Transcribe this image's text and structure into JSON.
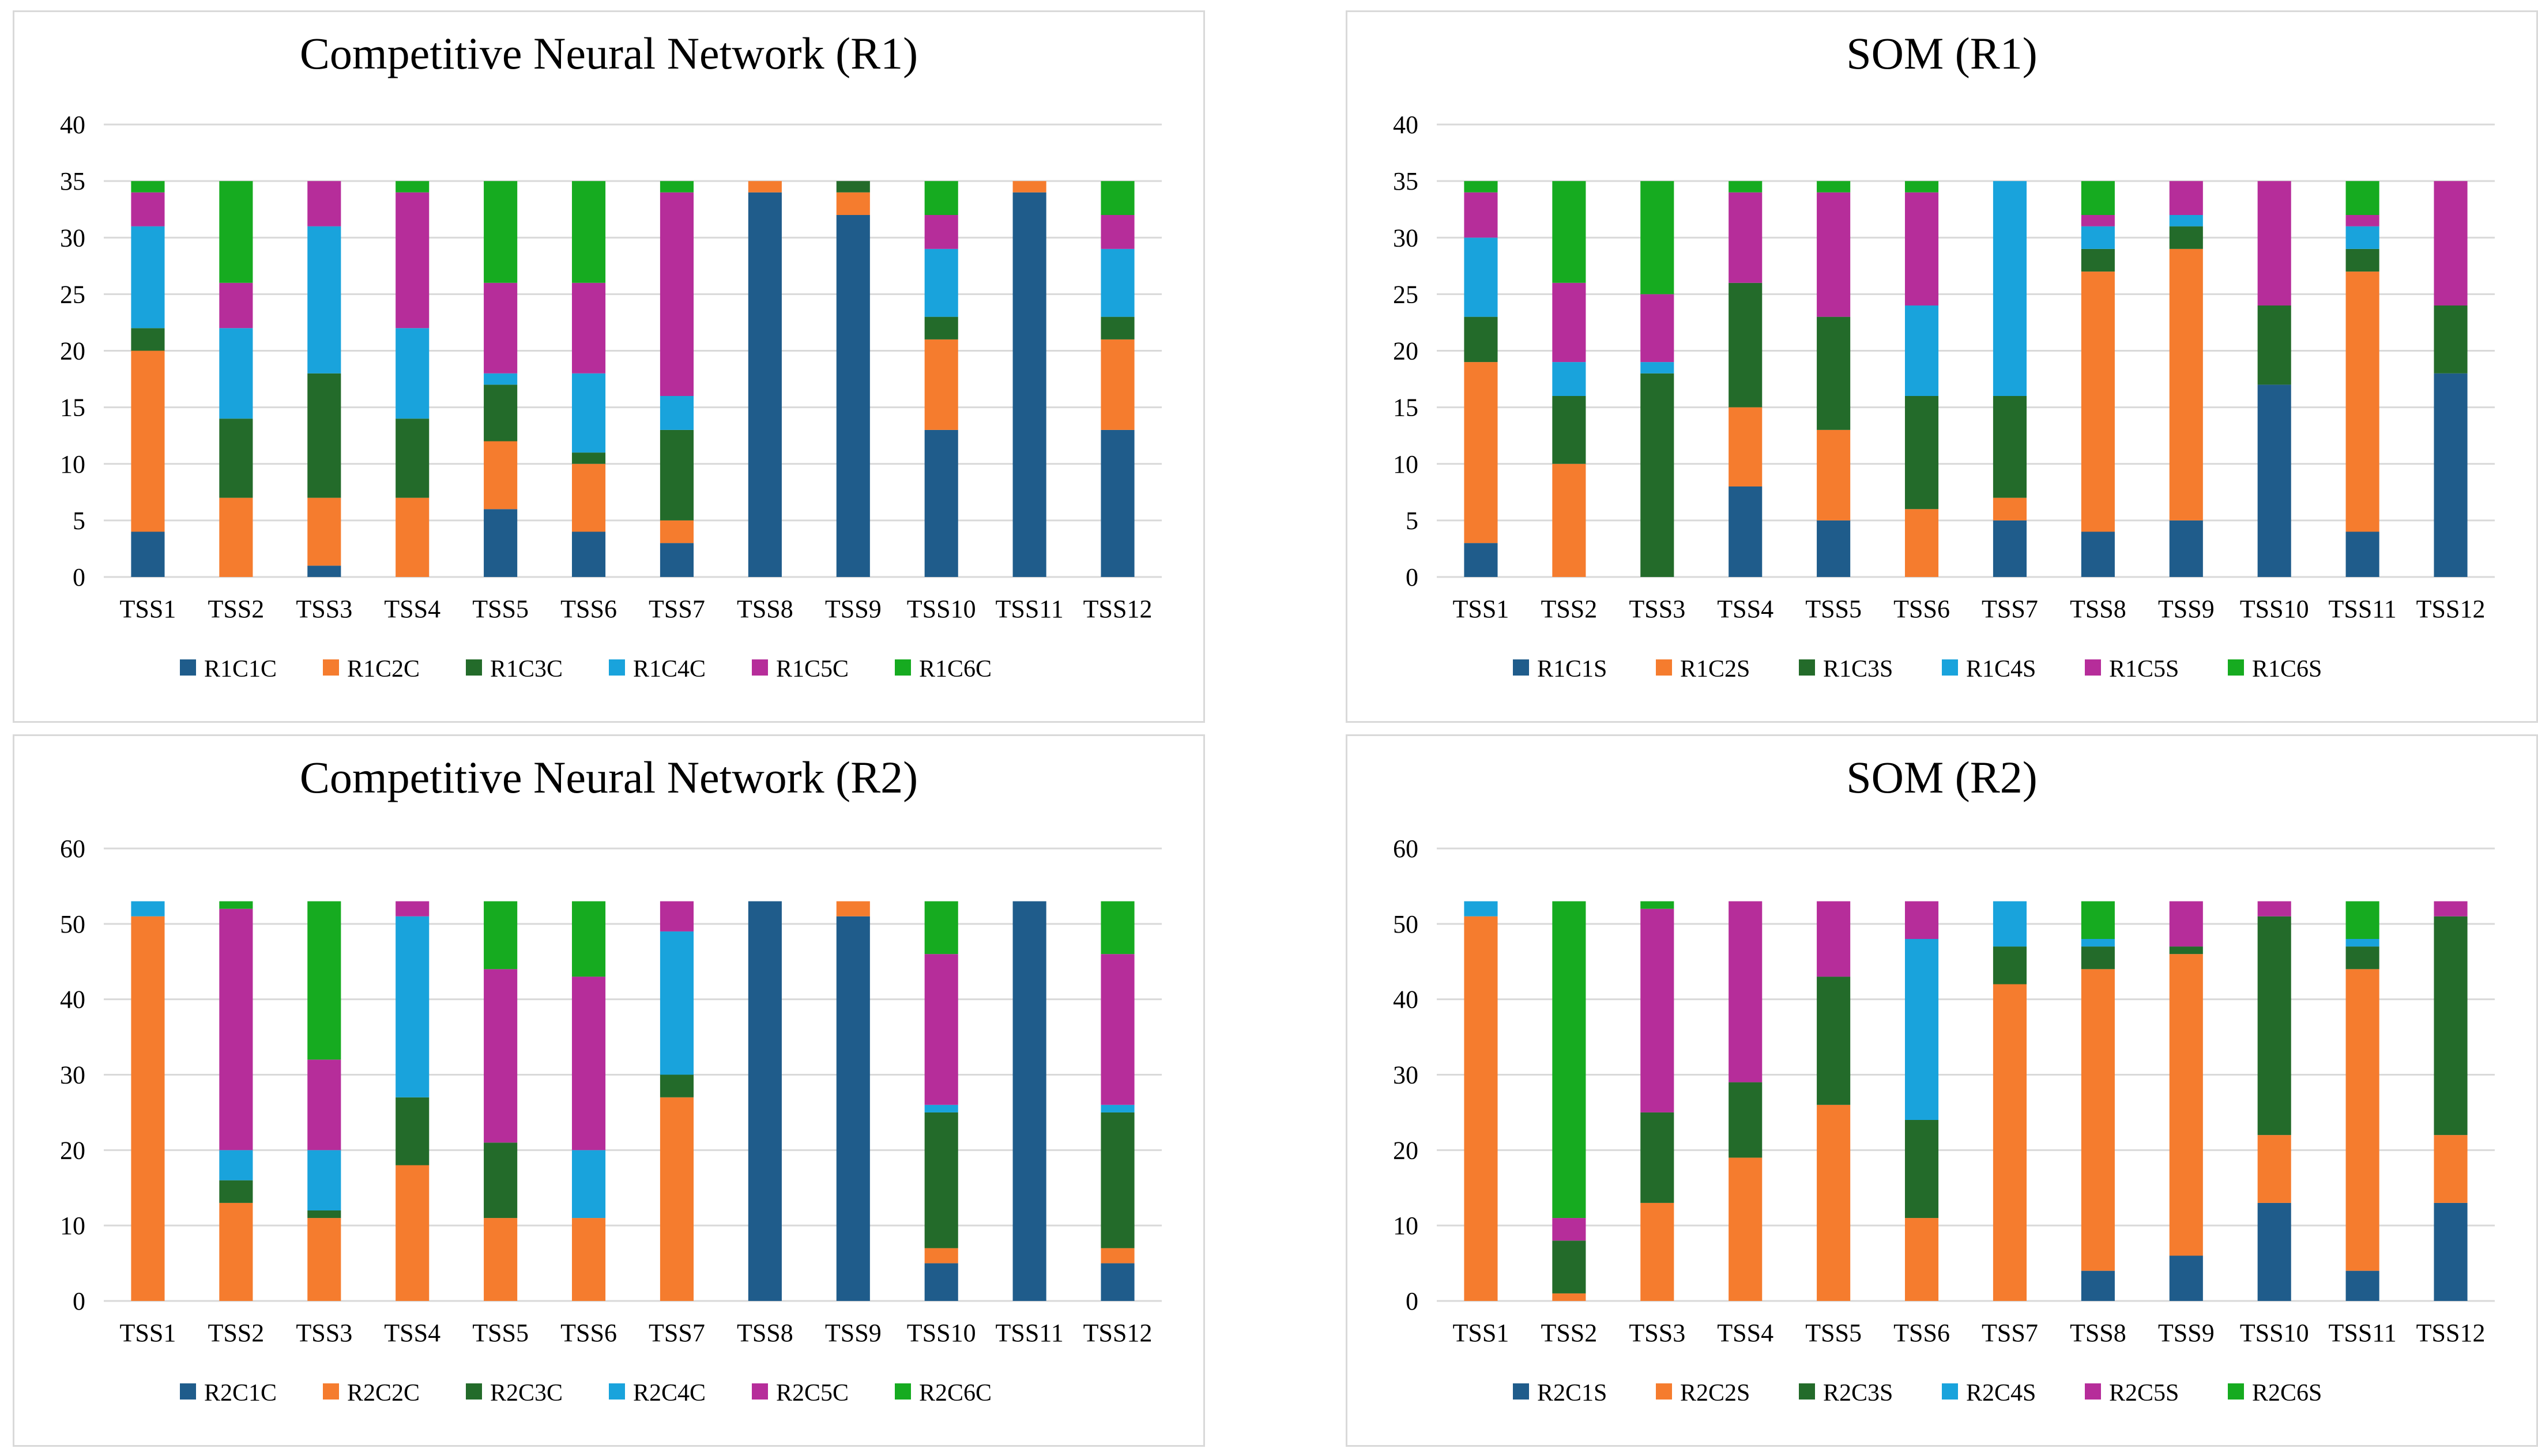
{
  "chart_data": [
    {
      "type": "bar",
      "stacked": true,
      "title": "Competitive Neural Network (R1)",
      "categories": [
        "TSS1",
        "TSS2",
        "TSS3",
        "TSS4",
        "TSS5",
        "TSS6",
        "TSS7",
        "TSS8",
        "TSS9",
        "TSS10",
        "TSS11",
        "TSS12"
      ],
      "ylim": [
        0,
        40
      ],
      "yticks": [
        "0",
        "5",
        "10",
        "15",
        "20",
        "25",
        "30",
        "35",
        "40"
      ],
      "legend_position": "bottom",
      "series": [
        {
          "name": "R1C1C",
          "color": "#1f5c8b",
          "values": [
            4,
            0,
            1,
            0,
            6,
            4,
            3,
            34,
            32,
            13,
            34,
            13
          ]
        },
        {
          "name": "R1C2C",
          "color": "#f57c2e",
          "values": [
            16,
            7,
            6,
            7,
            6,
            6,
            2,
            1,
            2,
            8,
            1,
            8
          ]
        },
        {
          "name": "R1C3C",
          "color": "#236b2a",
          "values": [
            2,
            7,
            11,
            7,
            5,
            1,
            8,
            0,
            1,
            2,
            0,
            2
          ]
        },
        {
          "name": "R1C4C",
          "color": "#19a3dc",
          "values": [
            9,
            8,
            13,
            8,
            1,
            7,
            3,
            0,
            0,
            6,
            0,
            6
          ]
        },
        {
          "name": "R1C5C",
          "color": "#b62d9a",
          "values": [
            3,
            4,
            4,
            12,
            8,
            8,
            18,
            0,
            0,
            3,
            0,
            3
          ]
        },
        {
          "name": "R1C6C",
          "color": "#16ab20",
          "values": [
            1,
            9,
            0,
            1,
            9,
            9,
            1,
            0,
            0,
            3,
            0,
            3
          ]
        }
      ]
    },
    {
      "type": "bar",
      "stacked": true,
      "title": "SOM (R1)",
      "categories": [
        "TSS1",
        "TSS2",
        "TSS3",
        "TSS4",
        "TSS5",
        "TSS6",
        "TSS7",
        "TSS8",
        "TSS9",
        "TSS10",
        "TSS11",
        "TSS12"
      ],
      "ylim": [
        0,
        40
      ],
      "yticks": [
        "0",
        "5",
        "10",
        "15",
        "20",
        "25",
        "30",
        "35",
        "40"
      ],
      "legend_position": "bottom",
      "series": [
        {
          "name": "R1C1S",
          "color": "#1f5c8b",
          "values": [
            3,
            0,
            0,
            8,
            5,
            0,
            5,
            4,
            5,
            17,
            4,
            18
          ]
        },
        {
          "name": "R1C2S",
          "color": "#f57c2e",
          "values": [
            16,
            10,
            0,
            7,
            8,
            6,
            2,
            23,
            24,
            0,
            23,
            0
          ]
        },
        {
          "name": "R1C3S",
          "color": "#236b2a",
          "values": [
            4,
            6,
            18,
            11,
            10,
            10,
            9,
            2,
            2,
            7,
            2,
            6
          ]
        },
        {
          "name": "R1C4S",
          "color": "#19a3dc",
          "values": [
            7,
            3,
            1,
            0,
            0,
            8,
            19,
            2,
            1,
            0,
            2,
            0
          ]
        },
        {
          "name": "R1C5S",
          "color": "#b62d9a",
          "values": [
            4,
            7,
            6,
            8,
            11,
            10,
            0,
            1,
            3,
            11,
            1,
            11
          ]
        },
        {
          "name": "R1C6S",
          "color": "#16ab20",
          "values": [
            1,
            9,
            10,
            1,
            1,
            1,
            0,
            3,
            0,
            0,
            3,
            0
          ]
        }
      ]
    },
    {
      "type": "bar",
      "stacked": true,
      "title": "Competitive Neural Network (R2)",
      "categories": [
        "TSS1",
        "TSS2",
        "TSS3",
        "TSS4",
        "TSS5",
        "TSS6",
        "TSS7",
        "TSS8",
        "TSS9",
        "TSS10",
        "TSS11",
        "TSS12"
      ],
      "ylim": [
        0,
        60
      ],
      "yticks": [
        "0",
        "10",
        "20",
        "30",
        "40",
        "50",
        "60"
      ],
      "legend_position": "bottom",
      "series": [
        {
          "name": "R2C1C",
          "color": "#1f5c8b",
          "values": [
            0,
            0,
            0,
            0,
            0,
            0,
            0,
            53,
            51,
            5,
            53,
            5
          ]
        },
        {
          "name": "R2C2C",
          "color": "#f57c2e",
          "values": [
            51,
            13,
            11,
            18,
            11,
            11,
            27,
            0,
            2,
            2,
            0,
            2
          ]
        },
        {
          "name": "R2C3C",
          "color": "#236b2a",
          "values": [
            0,
            3,
            1,
            9,
            10,
            0,
            3,
            0,
            0,
            18,
            0,
            18
          ]
        },
        {
          "name": "R2C4C",
          "color": "#19a3dc",
          "values": [
            2,
            4,
            8,
            24,
            0,
            9,
            19,
            0,
            0,
            1,
            0,
            1
          ]
        },
        {
          "name": "R2C5C",
          "color": "#b62d9a",
          "values": [
            0,
            32,
            12,
            2,
            23,
            23,
            4,
            0,
            0,
            20,
            0,
            20
          ]
        },
        {
          "name": "R2C6C",
          "color": "#16ab20",
          "values": [
            0,
            1,
            21,
            0,
            9,
            10,
            0,
            0,
            0,
            7,
            0,
            7
          ]
        }
      ]
    },
    {
      "type": "bar",
      "stacked": true,
      "title": "SOM (R2)",
      "categories": [
        "TSS1",
        "TSS2",
        "TSS3",
        "TSS4",
        "TSS5",
        "TSS6",
        "TSS7",
        "TSS8",
        "TSS9",
        "TSS10",
        "TSS11",
        "TSS12"
      ],
      "ylim": [
        0,
        60
      ],
      "yticks": [
        "0",
        "10",
        "20",
        "30",
        "40",
        "50",
        "60"
      ],
      "legend_position": "bottom",
      "series": [
        {
          "name": "R2C1S",
          "color": "#1f5c8b",
          "values": [
            0,
            0,
            0,
            0,
            0,
            0,
            0,
            4,
            6,
            13,
            4,
            13
          ]
        },
        {
          "name": "R2C2S",
          "color": "#f57c2e",
          "values": [
            51,
            1,
            13,
            19,
            26,
            11,
            42,
            40,
            40,
            9,
            40,
            9
          ]
        },
        {
          "name": "R2C3S",
          "color": "#236b2a",
          "values": [
            0,
            7,
            12,
            10,
            17,
            13,
            5,
            3,
            1,
            29,
            3,
            29
          ]
        },
        {
          "name": "R2C4S",
          "color": "#19a3dc",
          "values": [
            2,
            0,
            0,
            0,
            0,
            24,
            6,
            1,
            0,
            0,
            1,
            0
          ]
        },
        {
          "name": "R2C5S",
          "color": "#b62d9a",
          "values": [
            0,
            3,
            27,
            24,
            10,
            5,
            0,
            0,
            6,
            2,
            0,
            2
          ]
        },
        {
          "name": "R2C6S",
          "color": "#16ab20",
          "values": [
            0,
            42,
            1,
            0,
            0,
            0,
            0,
            5,
            0,
            0,
            5,
            0
          ]
        }
      ]
    }
  ]
}
